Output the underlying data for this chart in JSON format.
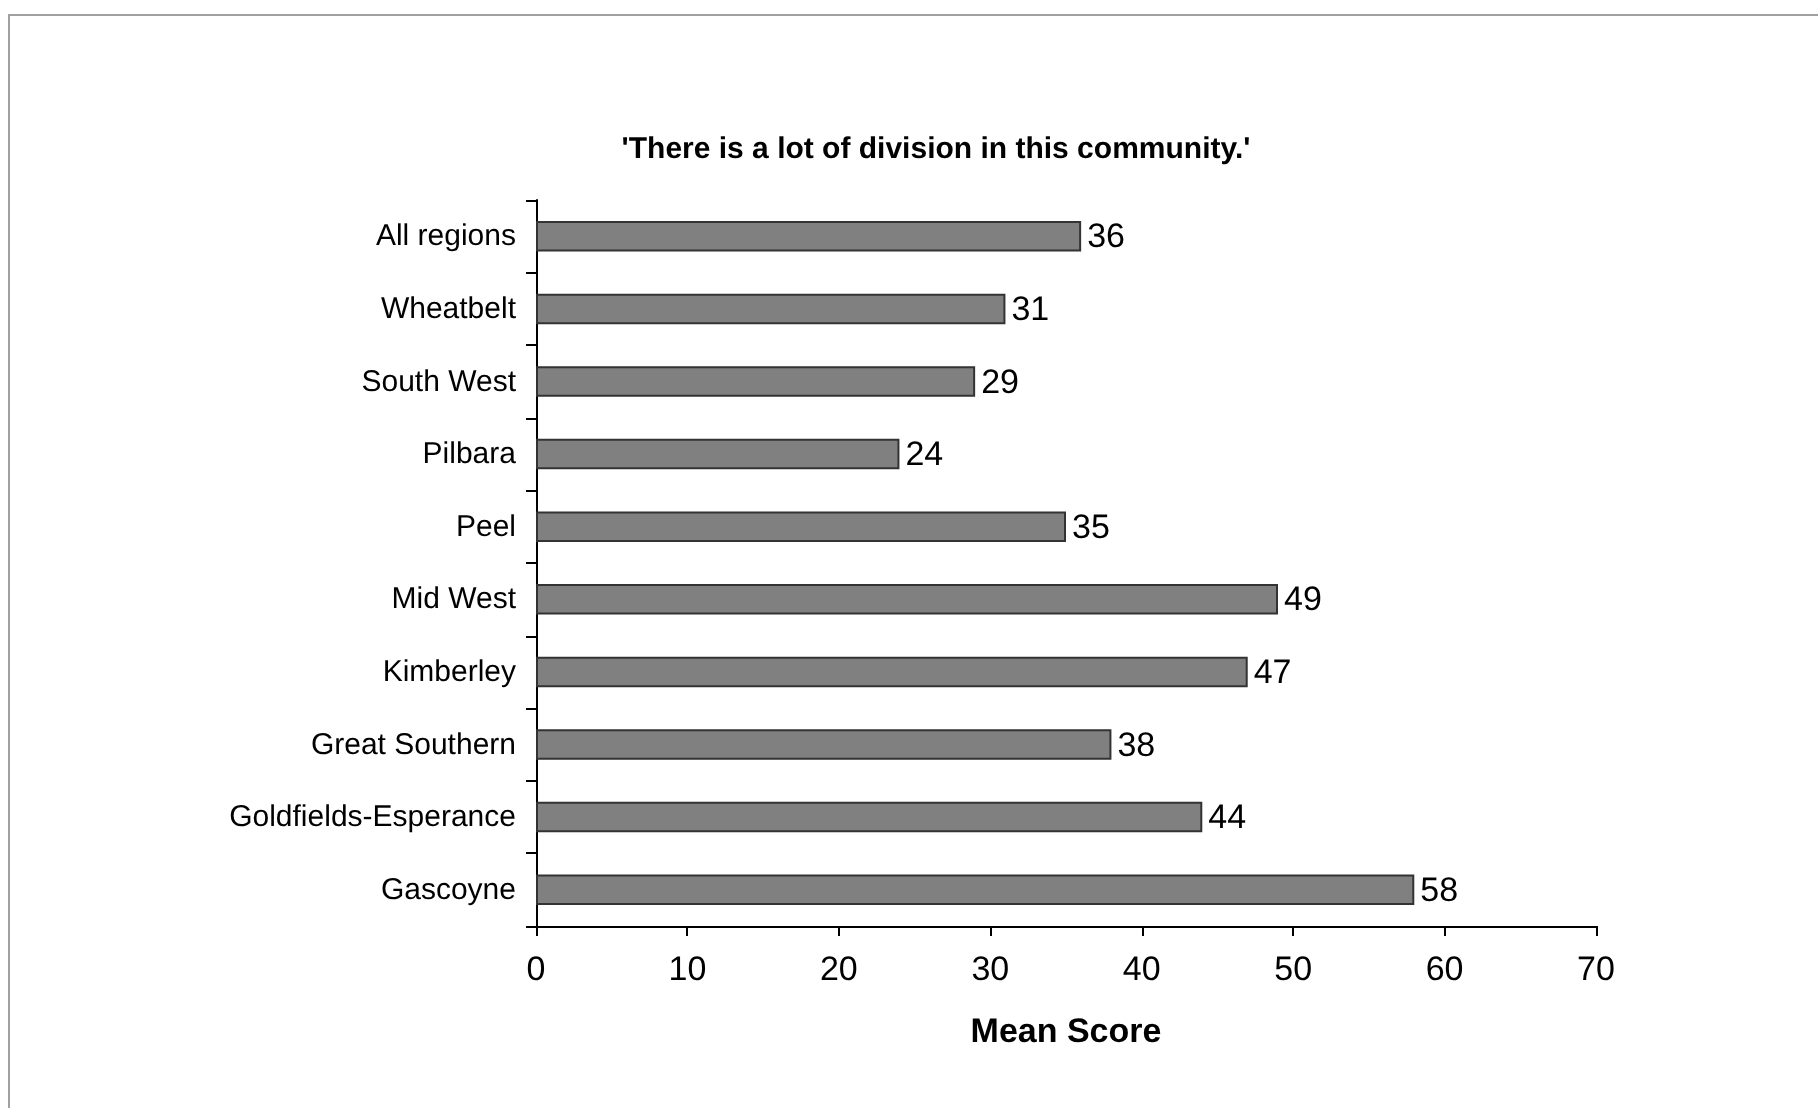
{
  "chart_data": {
    "type": "bar",
    "orientation": "horizontal",
    "title": "'There is a lot of division in this community.'",
    "xlabel": "Mean Score",
    "categories": [
      "All regions",
      "Wheatbelt",
      "South West",
      "Pilbara",
      "Peel",
      "Mid West",
      "Kimberley",
      "Great Southern",
      "Goldfields-Esperance",
      "Gascoyne"
    ],
    "values": [
      36,
      31,
      29,
      24,
      35,
      49,
      47,
      38,
      44,
      58
    ],
    "color": "#808080",
    "xlim": [
      0,
      70
    ],
    "xticks": [
      0,
      10,
      20,
      30,
      40,
      50,
      60,
      70
    ],
    "grid": false,
    "data_labels": true
  }
}
